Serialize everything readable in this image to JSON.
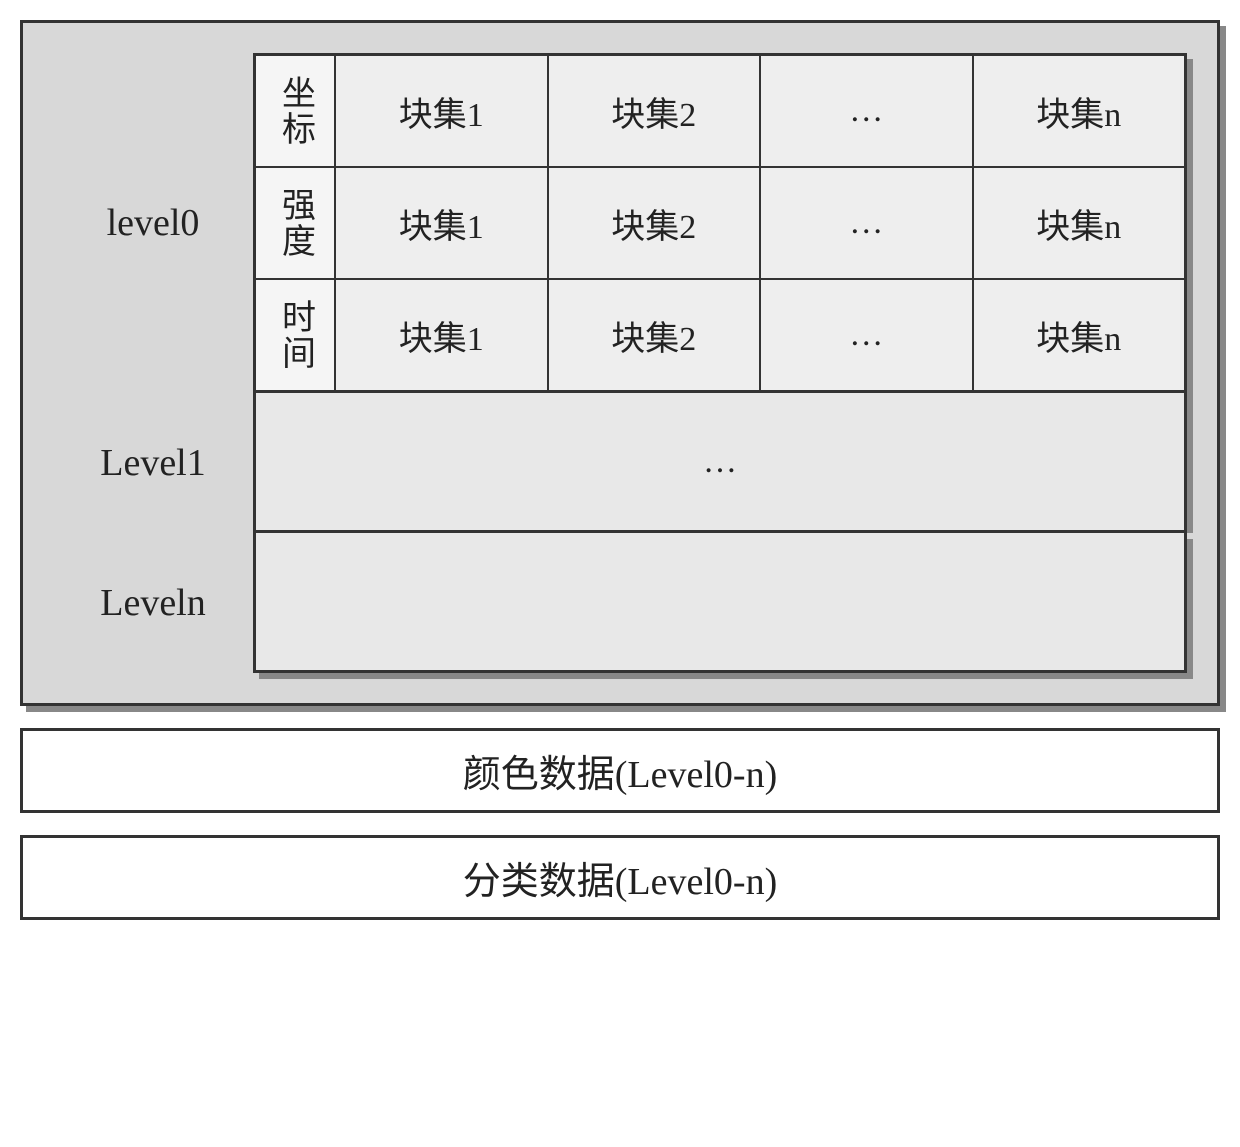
{
  "mainBox": {
    "background": "#d8d8d8",
    "border": "#333333",
    "shadow": "#888888"
  },
  "levels": {
    "level0": {
      "label": "level0",
      "rows": [
        {
          "label": "坐标",
          "cells": [
            "块集1",
            "块集2",
            "…",
            "块集n"
          ]
        },
        {
          "label": "强度",
          "cells": [
            "块集1",
            "块集2",
            "…",
            "块集n"
          ]
        },
        {
          "label": "时间",
          "cells": [
            "块集1",
            "块集2",
            "…",
            "块集n"
          ]
        }
      ]
    },
    "level1": {
      "label": "Level1",
      "content": "…"
    },
    "leveln": {
      "label": "Leveln",
      "content": ""
    }
  },
  "bottomBars": [
    {
      "text_cn": "颜色数据",
      "text_en": "(Level0-n)"
    },
    {
      "text_cn": "分类数据",
      "text_en": "(Level0-n)"
    }
  ],
  "typography": {
    "label_fontsize": 38,
    "cell_fontsize": 34,
    "rowlabel_fontsize": 34,
    "font_cn": "SimSun",
    "font_en": "Times New Roman"
  },
  "colors": {
    "cell_bg": "#eeeeee",
    "rowlabel_bg": "#f5f5f5",
    "plain_bg": "#e8e8e8",
    "bar_bg": "#ffffff",
    "text": "#222222"
  }
}
